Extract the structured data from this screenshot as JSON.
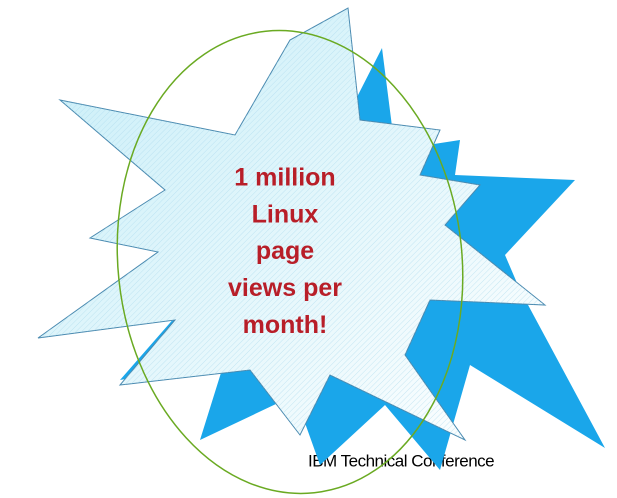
{
  "callout": {
    "lines": [
      "1 million",
      "Linux",
      "page",
      "views per",
      "month!"
    ]
  },
  "footer": "IBM Technical Conference"
}
